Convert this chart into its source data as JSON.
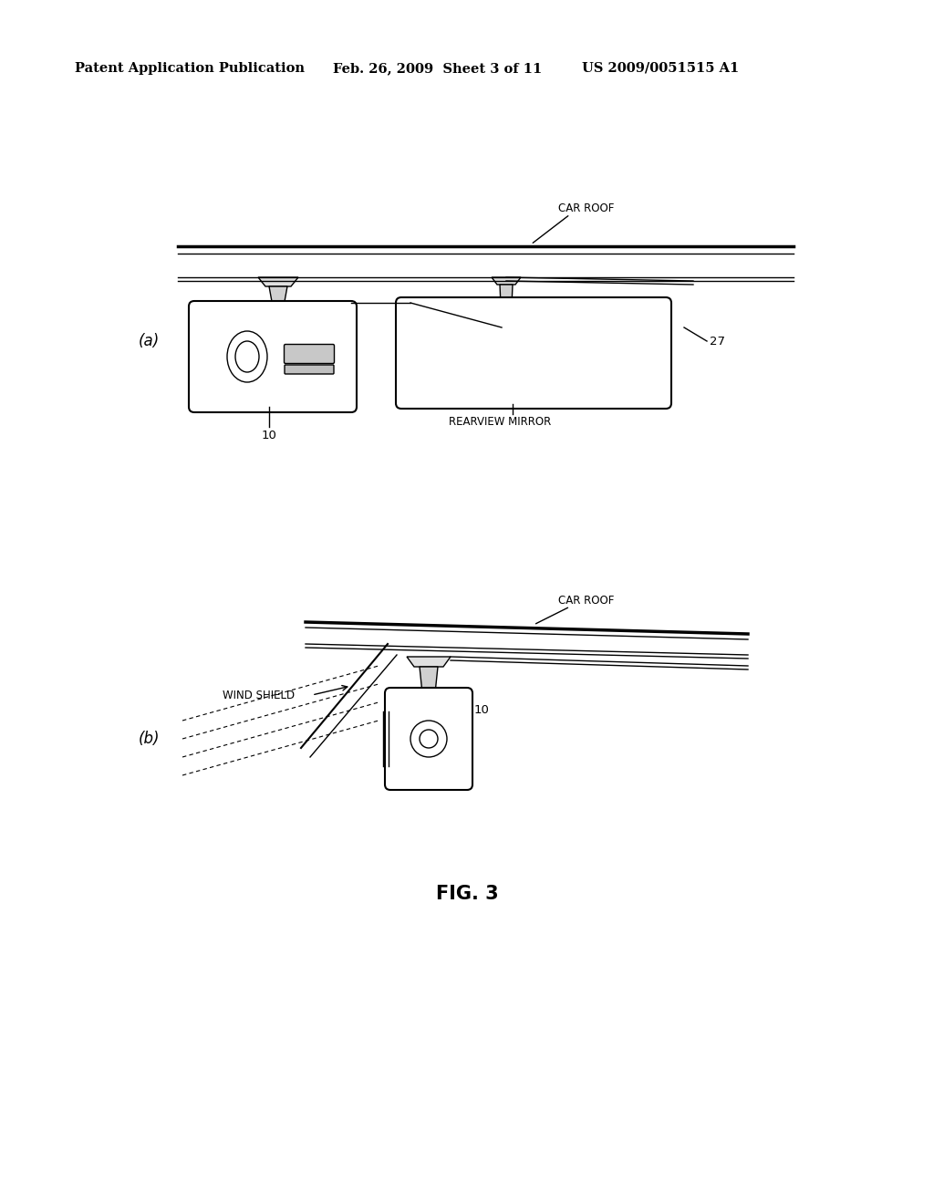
{
  "background_color": "#ffffff",
  "header_text": "Patent Application Publication",
  "header_date": "Feb. 26, 2009  Sheet 3 of 11",
  "header_patent": "US 2009/0051515 A1",
  "figure_label": "FIG. 3",
  "fig_a_label": "(a)",
  "fig_b_label": "(b)",
  "label_10_a": "10",
  "label_27": "27",
  "label_rearview": "REARVIEW MIRROR",
  "label_car_roof_a": "CAR ROOF",
  "label_car_roof_b": "CAR ROOF",
  "label_wind_shield": "WIND SHIELD",
  "label_10_b": "10"
}
